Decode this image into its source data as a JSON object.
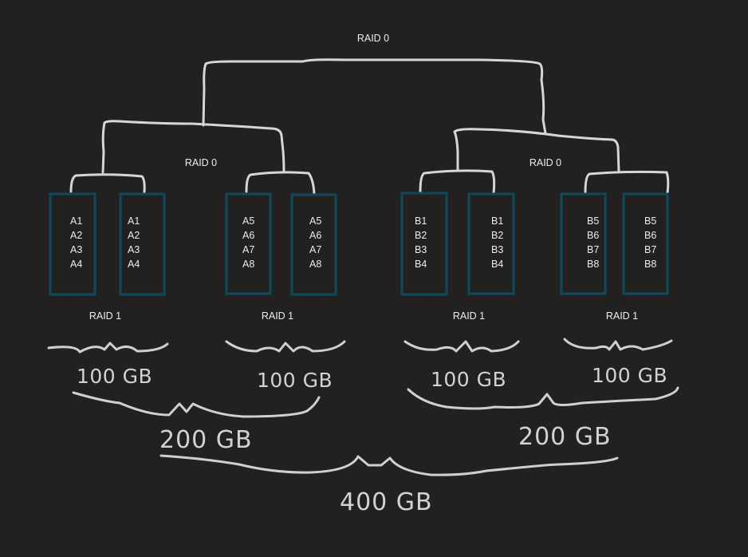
{
  "title": "RAID 0",
  "colors": {
    "background": "#222120",
    "disk_border": "#0c4a5e",
    "wire": "#d6d6d6",
    "text": "#ececec"
  },
  "groups": [
    {
      "raid0_label": "RAID 0",
      "capacity": "200 GB",
      "pairs": [
        {
          "raid1_label": "RAID 1",
          "capacity": "100 GB",
          "disks": [
            {
              "blocks": [
                "A1",
                "A2",
                "A3",
                "A4"
              ]
            },
            {
              "blocks": [
                "A1",
                "A2",
                "A3",
                "A4"
              ]
            }
          ]
        },
        {
          "raid1_label": "RAID 1",
          "capacity": "100 GB",
          "disks": [
            {
              "blocks": [
                "A5",
                "A6",
                "A7",
                "A8"
              ]
            },
            {
              "blocks": [
                "A5",
                "A6",
                "A7",
                "A8"
              ]
            }
          ]
        }
      ]
    },
    {
      "raid0_label": "RAID 0",
      "capacity": "200 GB",
      "pairs": [
        {
          "raid1_label": "RAID 1",
          "capacity": "100 GB",
          "disks": [
            {
              "blocks": [
                "B1",
                "B2",
                "B3",
                "B4"
              ]
            },
            {
              "blocks": [
                "B1",
                "B2",
                "B3",
                "B4"
              ]
            }
          ]
        },
        {
          "raid1_label": "RAID 1",
          "capacity": "100 GB",
          "disks": [
            {
              "blocks": [
                "B5",
                "B6",
                "B7",
                "B8"
              ]
            },
            {
              "blocks": [
                "B5",
                "B6",
                "B7",
                "B8"
              ]
            }
          ]
        }
      ]
    }
  ],
  "total_capacity": "400 GB"
}
